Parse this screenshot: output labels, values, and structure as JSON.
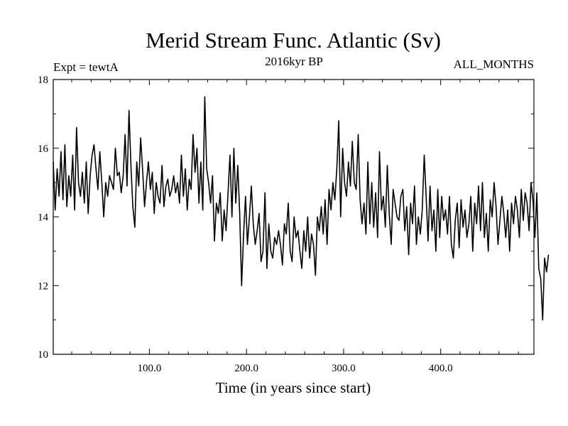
{
  "chart_data": {
    "type": "line",
    "title": "Merid Stream Func. Atlantic (Sv)",
    "subtitle_left": "Expt = tewtA",
    "subtitle_center": "2016kyr BP",
    "subtitle_right": "ALL_MONTHS",
    "xlabel": "Time (in years since start)",
    "ylabel": "",
    "xlim": [
      1,
      496
    ],
    "ylim": [
      10,
      18
    ],
    "x_ticks": [
      100,
      200,
      300,
      400
    ],
    "x_tick_labels": [
      "100.0",
      "200.0",
      "300.0",
      "400.0"
    ],
    "y_ticks": [
      10,
      12,
      14,
      16,
      18
    ],
    "y_tick_labels": [
      "10",
      "12",
      "14",
      "16",
      "18"
    ],
    "grid": false,
    "series": [
      {
        "name": "Merid Stream Func. Atlantic",
        "color": "#000000",
        "x_start": 1,
        "x_step": 2,
        "values": [
          15.6,
          14.2,
          15.4,
          14.6,
          15.9,
          14.5,
          16.1,
          14.3,
          15.2,
          14.6,
          15.8,
          14.2,
          16.6,
          15.0,
          14.6,
          15.3,
          14.4,
          15.6,
          14.1,
          15.2,
          15.8,
          16.1,
          15.4,
          14.8,
          15.9,
          15.0,
          14.0,
          15.0,
          14.6,
          15.2,
          15.0,
          14.8,
          16.0,
          15.2,
          15.3,
          14.7,
          15.2,
          16.4,
          14.9,
          17.1,
          15.5,
          14.3,
          13.7,
          15.6,
          14.9,
          16.3,
          15.4,
          14.3,
          15.0,
          15.6,
          14.8,
          15.3,
          14.1,
          15.0,
          14.6,
          14.4,
          15.5,
          14.3,
          14.9,
          15.1,
          14.6,
          14.8,
          15.2,
          14.7,
          15.0,
          14.4,
          15.8,
          14.6,
          15.4,
          14.2,
          15.1,
          14.8,
          16.4,
          15.3,
          16.0,
          14.4,
          15.6,
          14.2,
          17.5,
          15.4,
          15.0,
          14.4,
          15.2,
          13.3,
          14.4,
          14.1,
          14.7,
          13.3,
          14.2,
          13.6,
          14.7,
          15.8,
          14.0,
          16.0,
          14.4,
          15.5,
          14.1,
          12.0,
          13.5,
          14.6,
          13.2,
          14.0,
          14.9,
          13.8,
          13.2,
          13.6,
          14.1,
          12.7,
          13.0,
          14.7,
          12.5,
          13.8,
          13.0,
          12.8,
          13.4,
          13.2,
          13.6,
          13.2,
          12.6,
          13.8,
          13.5,
          14.4,
          13.0,
          12.7,
          14.0,
          13.4,
          13.6,
          13.0,
          12.5,
          13.6,
          13.0,
          14.0,
          12.8,
          13.5,
          13.2,
          12.3,
          14.0,
          13.6,
          14.3,
          13.5,
          14.5,
          13.2,
          14.8,
          14.2,
          15.0,
          14.5,
          15.4,
          16.8,
          14.0,
          16.0,
          15.0,
          14.6,
          15.6,
          14.9,
          16.2,
          15.0,
          14.8,
          16.4,
          14.5,
          13.8,
          14.4,
          13.5,
          15.6,
          13.8,
          15.0,
          13.7,
          14.7,
          13.4,
          15.9,
          14.2,
          14.6,
          13.7,
          15.5,
          14.1,
          13.2,
          14.8,
          14.4,
          14.0,
          13.9,
          14.6,
          14.8,
          13.6,
          14.3,
          12.9,
          14.4,
          13.8,
          14.9,
          13.2,
          14.0,
          13.5,
          14.2,
          15.8,
          14.6,
          13.3,
          14.9,
          13.6,
          14.2,
          13.0,
          14.8,
          13.4,
          14.6,
          13.9,
          14.2,
          13.5,
          14.6,
          13.2,
          12.8,
          13.9,
          14.4,
          13.1,
          14.5,
          13.7,
          14.2,
          13.4,
          13.8,
          14.6,
          13.0,
          14.4,
          13.8,
          14.9,
          13.6,
          15.0,
          13.4,
          14.1,
          13.0,
          14.5,
          14.0,
          15.0,
          14.3,
          13.2,
          13.9,
          14.6,
          14.1,
          13.4,
          14.2,
          13.0,
          14.4,
          13.8,
          14.6,
          14.2,
          13.4,
          14.8,
          13.9,
          14.7,
          14.4,
          13.6,
          15.0,
          14.5,
          13.4,
          14.7,
          12.5,
          12.2,
          11.0,
          12.8,
          12.4,
          12.9
        ]
      }
    ]
  }
}
